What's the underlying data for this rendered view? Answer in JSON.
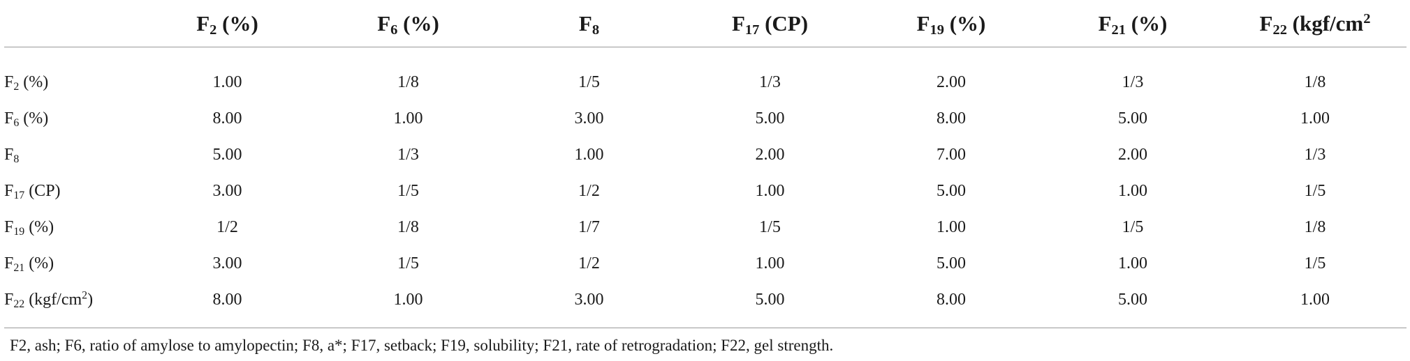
{
  "table": {
    "headers": [
      {
        "base": "",
        "sub": "",
        "unit": "",
        "sup": "",
        "close": ""
      },
      {
        "base": "F",
        "sub": "2",
        "unit": " (%)",
        "sup": "",
        "close": ""
      },
      {
        "base": "F",
        "sub": "6",
        "unit": " (%)",
        "sup": "",
        "close": ""
      },
      {
        "base": "F",
        "sub": "8",
        "unit": "",
        "sup": "",
        "close": ""
      },
      {
        "base": "F",
        "sub": "17",
        "unit": " (CP)",
        "sup": "",
        "close": ""
      },
      {
        "base": "F",
        "sub": "19",
        "unit": " (%)",
        "sup": "",
        "close": ""
      },
      {
        "base": "F",
        "sub": "21",
        "unit": " (%)",
        "sup": "",
        "close": ""
      },
      {
        "base": "F",
        "sub": "22",
        "unit": " (kgf/cm",
        "sup": "2",
        "close": ""
      }
    ],
    "rows": [
      {
        "label": {
          "base": "F",
          "sub": "2",
          "unit": " (%)",
          "sup": "",
          "close": ""
        },
        "cells": [
          "1.00",
          "1/8",
          "1/5",
          "1/3",
          "2.00",
          "1/3",
          "1/8"
        ]
      },
      {
        "label": {
          "base": "F",
          "sub": "6",
          "unit": " (%)",
          "sup": "",
          "close": ""
        },
        "cells": [
          "8.00",
          "1.00",
          "3.00",
          "5.00",
          "8.00",
          "5.00",
          "1.00"
        ]
      },
      {
        "label": {
          "base": "F",
          "sub": "8",
          "unit": "",
          "sup": "",
          "close": ""
        },
        "cells": [
          "5.00",
          "1/3",
          "1.00",
          "2.00",
          "7.00",
          "2.00",
          "1/3"
        ]
      },
      {
        "label": {
          "base": "F",
          "sub": "17",
          "unit": " (CP)",
          "sup": "",
          "close": ""
        },
        "cells": [
          "3.00",
          "1/5",
          "1/2",
          "1.00",
          "5.00",
          "1.00",
          "1/5"
        ]
      },
      {
        "label": {
          "base": "F",
          "sub": "19",
          "unit": " (%)",
          "sup": "",
          "close": ""
        },
        "cells": [
          "1/2",
          "1/8",
          "1/7",
          "1/5",
          "1.00",
          "1/5",
          "1/8"
        ]
      },
      {
        "label": {
          "base": "F",
          "sub": "21",
          "unit": " (%)",
          "sup": "",
          "close": ""
        },
        "cells": [
          "3.00",
          "1/5",
          "1/2",
          "1.00",
          "5.00",
          "1.00",
          "1/5"
        ]
      },
      {
        "label": {
          "base": "F",
          "sub": "22",
          "unit": " (kgf/cm",
          "sup": "2",
          "close": ")"
        },
        "cells": [
          "8.00",
          "1.00",
          "3.00",
          "5.00",
          "8.00",
          "5.00",
          "1.00"
        ]
      }
    ]
  },
  "footnote": "F2, ash; F6, ratio of amylose to amylopectin; F8, a*; F17, setback; F19, solubility; F21, rate of retrogradation; F22, gel strength."
}
